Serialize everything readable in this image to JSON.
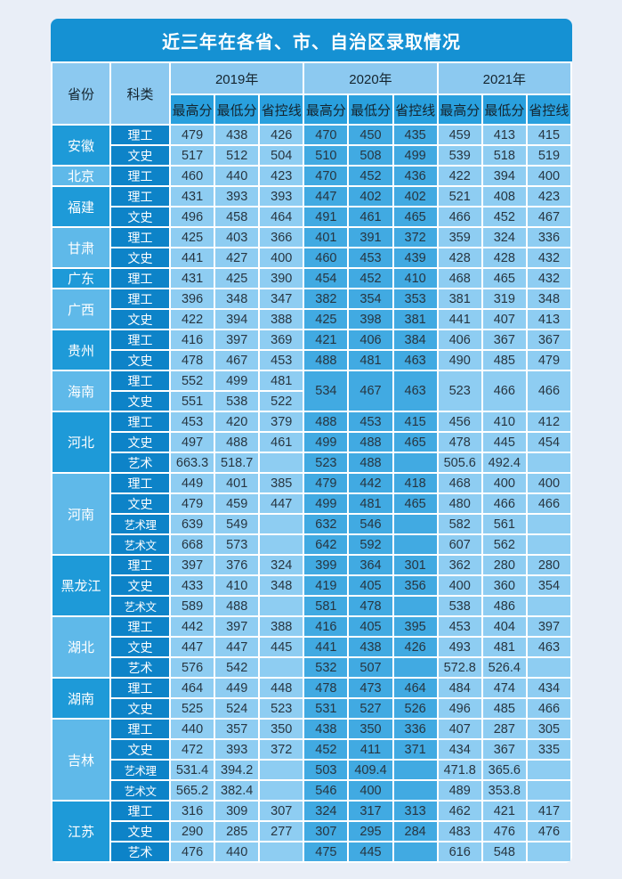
{
  "title": "近三年在各省、市、自治区录取情况",
  "colors": {
    "page_bg": "#e9eef7",
    "title_bar": "#1591d3",
    "header_light": "#8cc9f0",
    "header_sub": "#29a0de",
    "category_col": "#0d83c8",
    "province_dark": "#1e9ad8",
    "province_light": "#5fb9e9",
    "cell_light": "#8ecdf2",
    "cell_medium": "#41aae2"
  },
  "header": {
    "province_label": "省份",
    "category_label": "科类",
    "years": [
      "2019年",
      "2020年",
      "2021年"
    ],
    "subcolumns": [
      "最高分",
      "最低分",
      "省控线"
    ]
  },
  "table": {
    "provinces": [
      {
        "name": "安徽",
        "shade": "dark",
        "rows": [
          {
            "category": "理工",
            "values": [
              "479",
              "438",
              "426",
              "470",
              "450",
              "435",
              "459",
              "413",
              "415"
            ]
          },
          {
            "category": "文史",
            "values": [
              "517",
              "512",
              "504",
              "510",
              "508",
              "499",
              "539",
              "518",
              "519"
            ]
          }
        ]
      },
      {
        "name": "北京",
        "shade": "light",
        "rows": [
          {
            "category": "理工",
            "values": [
              "460",
              "440",
              "423",
              "470",
              "452",
              "436",
              "422",
              "394",
              "400"
            ]
          }
        ]
      },
      {
        "name": "福建",
        "shade": "dark",
        "rows": [
          {
            "category": "理工",
            "values": [
              "431",
              "393",
              "393",
              "447",
              "402",
              "402",
              "521",
              "408",
              "423"
            ]
          },
          {
            "category": "文史",
            "values": [
              "496",
              "458",
              "464",
              "491",
              "461",
              "465",
              "466",
              "452",
              "467"
            ]
          }
        ]
      },
      {
        "name": "甘肃",
        "shade": "light",
        "rows": [
          {
            "category": "理工",
            "values": [
              "425",
              "403",
              "366",
              "401",
              "391",
              "372",
              "359",
              "324",
              "336"
            ]
          },
          {
            "category": "文史",
            "values": [
              "441",
              "427",
              "400",
              "460",
              "453",
              "439",
              "428",
              "428",
              "432"
            ]
          }
        ]
      },
      {
        "name": "广东",
        "shade": "dark",
        "rows": [
          {
            "category": "理工",
            "values": [
              "431",
              "425",
              "390",
              "454",
              "452",
              "410",
              "468",
              "465",
              "432"
            ]
          }
        ]
      },
      {
        "name": "广西",
        "shade": "light",
        "rows": [
          {
            "category": "理工",
            "values": [
              "396",
              "348",
              "347",
              "382",
              "354",
              "353",
              "381",
              "319",
              "348"
            ]
          },
          {
            "category": "文史",
            "values": [
              "422",
              "394",
              "388",
              "425",
              "398",
              "381",
              "441",
              "407",
              "413"
            ]
          }
        ]
      },
      {
        "name": "贵州",
        "shade": "dark",
        "rows": [
          {
            "category": "理工",
            "values": [
              "416",
              "397",
              "369",
              "421",
              "406",
              "384",
              "406",
              "367",
              "367"
            ]
          },
          {
            "category": "文史",
            "values": [
              "478",
              "467",
              "453",
              "488",
              "481",
              "463",
              "490",
              "485",
              "479"
            ]
          }
        ]
      },
      {
        "name": "海南",
        "shade": "light",
        "merged": {
          "y2020": [
            "534",
            "467",
            "463"
          ],
          "y2021": [
            "523",
            "466",
            "466"
          ]
        },
        "rows": [
          {
            "category": "理工",
            "values": [
              "552",
              "499",
              "481"
            ]
          },
          {
            "category": "文史",
            "values": [
              "551",
              "538",
              "522"
            ]
          }
        ]
      },
      {
        "name": "河北",
        "shade": "dark",
        "rows": [
          {
            "category": "理工",
            "values": [
              "453",
              "420",
              "379",
              "488",
              "453",
              "415",
              "456",
              "410",
              "412"
            ]
          },
          {
            "category": "文史",
            "values": [
              "497",
              "488",
              "461",
              "499",
              "488",
              "465",
              "478",
              "445",
              "454"
            ]
          },
          {
            "category": "艺术",
            "values": [
              "663.3",
              "518.7",
              "",
              "523",
              "488",
              "",
              "505.6",
              "492.4",
              ""
            ]
          }
        ]
      },
      {
        "name": "河南",
        "shade": "light",
        "rows": [
          {
            "category": "理工",
            "values": [
              "449",
              "401",
              "385",
              "479",
              "442",
              "418",
              "468",
              "400",
              "400"
            ]
          },
          {
            "category": "文史",
            "values": [
              "479",
              "459",
              "447",
              "499",
              "481",
              "465",
              "480",
              "466",
              "466"
            ]
          },
          {
            "category": "艺术理",
            "values": [
              "639",
              "549",
              "",
              "632",
              "546",
              "",
              "582",
              "561",
              ""
            ]
          },
          {
            "category": "艺术文",
            "values": [
              "668",
              "573",
              "",
              "642",
              "592",
              "",
              "607",
              "562",
              ""
            ]
          }
        ]
      },
      {
        "name": "黑龙江",
        "shade": "dark",
        "rows": [
          {
            "category": "理工",
            "values": [
              "397",
              "376",
              "324",
              "399",
              "364",
              "301",
              "362",
              "280",
              "280"
            ]
          },
          {
            "category": "文史",
            "values": [
              "433",
              "410",
              "348",
              "419",
              "405",
              "356",
              "400",
              "360",
              "354"
            ]
          },
          {
            "category": "艺术文",
            "values": [
              "589",
              "488",
              "",
              "581",
              "478",
              "",
              "538",
              "486",
              ""
            ]
          }
        ]
      },
      {
        "name": "湖北",
        "shade": "light",
        "rows": [
          {
            "category": "理工",
            "values": [
              "442",
              "397",
              "388",
              "416",
              "405",
              "395",
              "453",
              "404",
              "397"
            ]
          },
          {
            "category": "文史",
            "values": [
              "447",
              "447",
              "445",
              "441",
              "438",
              "426",
              "493",
              "481",
              "463"
            ]
          },
          {
            "category": "艺术",
            "values": [
              "576",
              "542",
              "",
              "532",
              "507",
              "",
              "572.8",
              "526.4",
              ""
            ]
          }
        ]
      },
      {
        "name": "湖南",
        "shade": "dark",
        "rows": [
          {
            "category": "理工",
            "values": [
              "464",
              "449",
              "448",
              "478",
              "473",
              "464",
              "484",
              "474",
              "434"
            ]
          },
          {
            "category": "文史",
            "values": [
              "525",
              "524",
              "523",
              "531",
              "527",
              "526",
              "496",
              "485",
              "466"
            ]
          }
        ]
      },
      {
        "name": "吉林",
        "shade": "light",
        "rows": [
          {
            "category": "理工",
            "values": [
              "440",
              "357",
              "350",
              "438",
              "350",
              "336",
              "407",
              "287",
              "305"
            ]
          },
          {
            "category": "文史",
            "values": [
              "472",
              "393",
              "372",
              "452",
              "411",
              "371",
              "434",
              "367",
              "335"
            ]
          },
          {
            "category": "艺术理",
            "values": [
              "531.4",
              "394.2",
              "",
              "503",
              "409.4",
              "",
              "471.8",
              "365.6",
              ""
            ]
          },
          {
            "category": "艺术文",
            "values": [
              "565.2",
              "382.4",
              "",
              "546",
              "400",
              "",
              "489",
              "353.8",
              ""
            ]
          }
        ]
      },
      {
        "name": "江苏",
        "shade": "dark",
        "rows": [
          {
            "category": "理工",
            "values": [
              "316",
              "309",
              "307",
              "324",
              "317",
              "313",
              "462",
              "421",
              "417"
            ]
          },
          {
            "category": "文史",
            "values": [
              "290",
              "285",
              "277",
              "307",
              "295",
              "284",
              "483",
              "476",
              "476"
            ]
          },
          {
            "category": "艺术",
            "values": [
              "476",
              "440",
              "",
              "475",
              "445",
              "",
              "616",
              "548",
              ""
            ]
          }
        ]
      }
    ]
  }
}
